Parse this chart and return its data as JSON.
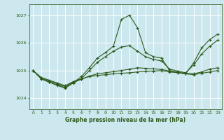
{
  "title": "Graphe pression niveau de la mer (hPa)",
  "bg_color": "#cce8ee",
  "grid_color": "#ffffff",
  "line_color": "#2d5a1b",
  "xlim": [
    -0.5,
    23.5
  ],
  "ylim": [
    1023.6,
    1027.4
  ],
  "yticks": [
    1024,
    1025,
    1026,
    1027
  ],
  "xticks": [
    0,
    1,
    2,
    3,
    4,
    5,
    6,
    7,
    8,
    9,
    10,
    11,
    12,
    13,
    14,
    15,
    16,
    17,
    18,
    19,
    20,
    21,
    22,
    23
  ],
  "series": [
    [
      1025.0,
      1024.75,
      1024.65,
      1024.55,
      1024.45,
      1024.6,
      1024.7,
      1024.78,
      1024.82,
      1024.85,
      1024.88,
      1024.9,
      1024.92,
      1024.95,
      1024.97,
      1024.98,
      1025.0,
      1024.95,
      1024.92,
      1024.88,
      1024.85,
      1024.9,
      1024.95,
      1025.0
    ],
    [
      1025.0,
      1024.72,
      1024.62,
      1024.52,
      1024.42,
      1024.58,
      1024.68,
      1024.8,
      1024.88,
      1024.92,
      1024.96,
      1025.0,
      1025.05,
      1025.1,
      1025.08,
      1025.06,
      1025.04,
      1024.98,
      1024.94,
      1024.9,
      1024.88,
      1024.95,
      1025.05,
      1025.1
    ],
    [
      1025.0,
      1024.7,
      1024.58,
      1024.48,
      1024.38,
      1024.55,
      1024.7,
      1025.0,
      1025.3,
      1025.5,
      1025.7,
      1025.85,
      1025.9,
      1025.7,
      1025.5,
      1025.4,
      1025.35,
      1025.05,
      1024.98,
      1024.92,
      1025.2,
      1025.6,
      1025.88,
      1026.1
    ],
    [
      1025.0,
      1024.7,
      1024.58,
      1024.46,
      1024.36,
      1024.56,
      1024.78,
      1025.1,
      1025.45,
      1025.65,
      1025.88,
      1026.85,
      1027.0,
      1026.55,
      1025.65,
      1025.5,
      1025.45,
      1025.0,
      1024.93,
      1024.88,
      1025.28,
      1025.82,
      1026.12,
      1026.32
    ]
  ]
}
